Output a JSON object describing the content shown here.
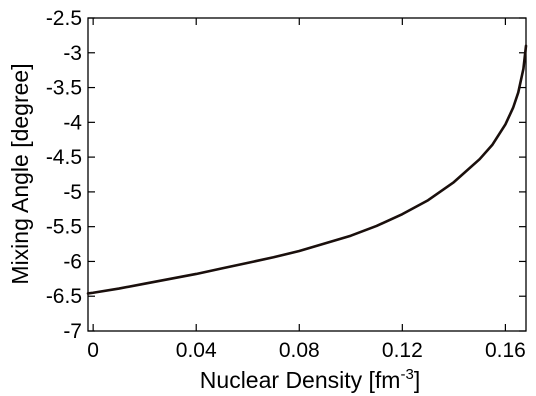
{
  "chart_data": {
    "type": "line",
    "xlabel": "Nuclear Density [fm",
    "xlabel_sup": "-3",
    "xlabel_suffix": "]",
    "ylabel": "Mixing Angle [degree]",
    "xlim": [
      -0.002,
      0.168
    ],
    "ylim": [
      -7,
      -2.5
    ],
    "xticks": [
      0,
      0.04,
      0.08,
      0.12,
      0.16
    ],
    "xtick_labels": [
      "0",
      "0.04",
      "0.08",
      "0.12",
      "0.16"
    ],
    "yticks": [
      -2.5,
      -3,
      -3.5,
      -4,
      -4.5,
      -5,
      -5.5,
      -6,
      -6.5,
      -7
    ],
    "ytick_labels": [
      "-2.5",
      "-3",
      "-3.5",
      "-4",
      "-4.5",
      "-5",
      "-5.5",
      "-6",
      "-6.5",
      "-7"
    ],
    "grid": false,
    "series": [
      {
        "color": "#1a0f0c",
        "x": [
          -0.002,
          0.0,
          0.01,
          0.02,
          0.03,
          0.04,
          0.05,
          0.06,
          0.07,
          0.08,
          0.09,
          0.1,
          0.11,
          0.12,
          0.13,
          0.14,
          0.15,
          0.155,
          0.16,
          0.163,
          0.165,
          0.167,
          0.168
        ],
        "y": [
          -6.46,
          -6.45,
          -6.39,
          -6.32,
          -6.25,
          -6.18,
          -6.1,
          -6.02,
          -5.94,
          -5.85,
          -5.74,
          -5.63,
          -5.49,
          -5.32,
          -5.12,
          -4.86,
          -4.53,
          -4.32,
          -4.03,
          -3.79,
          -3.57,
          -3.23,
          -2.9
        ]
      }
    ]
  }
}
